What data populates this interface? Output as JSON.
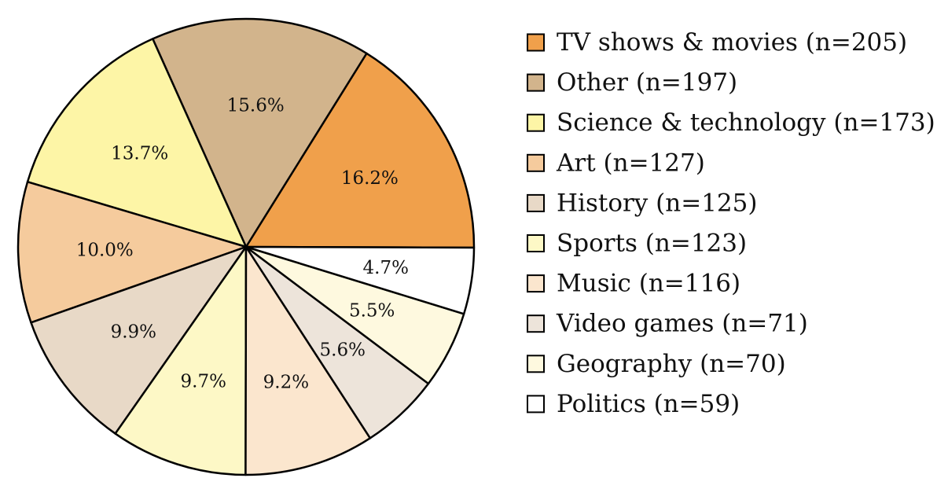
{
  "chart_data": {
    "type": "pie",
    "title": "",
    "legend_position": "right",
    "slices": [
      {
        "label": "TV shows & movies (n=205)",
        "value": 16.2,
        "display": "16.2%",
        "color": "#F0A04B"
      },
      {
        "label": "Other (n=197)",
        "value": 15.6,
        "display": "15.6%",
        "color": "#D2B48C"
      },
      {
        "label": "Science & technology (n=173)",
        "value": 13.7,
        "display": "13.7%",
        "color": "#FDF5A6"
      },
      {
        "label": "Art (n=127)",
        "value": 10.0,
        "display": "10.0%",
        "color": "#F5CB9D"
      },
      {
        "label": "History (n=125)",
        "value": 9.9,
        "display": "9.9%",
        "color": "#E8D9C7"
      },
      {
        "label": "Sports (n=123)",
        "value": 9.7,
        "display": "9.7%",
        "color": "#FDF8C6"
      },
      {
        "label": "Music (n=116)",
        "value": 9.2,
        "display": "9.2%",
        "color": "#FBE6CE"
      },
      {
        "label": "Video games (n=71)",
        "value": 5.6,
        "display": "5.6%",
        "color": "#EDE4DA"
      },
      {
        "label": "Geography (n=70)",
        "value": 5.5,
        "display": "5.5%",
        "color": "#FEF9DF"
      },
      {
        "label": "Politics (n=59)",
        "value": 4.7,
        "display": "4.7%",
        "color": "#FFFFFF"
      }
    ]
  }
}
